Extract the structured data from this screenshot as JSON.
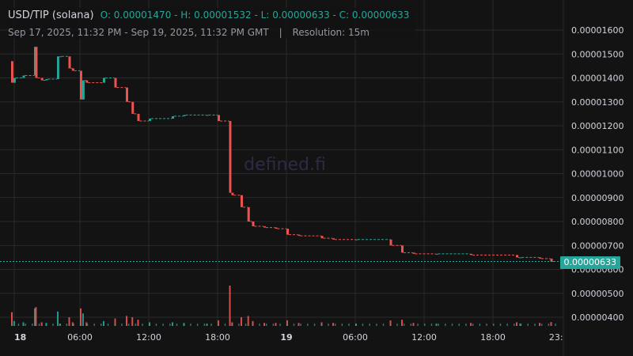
{
  "header": {
    "pair": "USD/TIP (solana)",
    "ohlc": "O: 0.00001470 - H: 0.00001532 - L: 0.00000633 - C: 0.00000633",
    "range": "Sep 17, 2025, 11:32 PM - Sep 19, 2025, 11:32 PM GMT",
    "separator": "|",
    "resolution": "Resolution: 15m"
  },
  "watermark": "defined.fi",
  "last_price_label": "0.00000633",
  "colors": {
    "up": "#26a69a",
    "down": "#ef5350",
    "background": "#131313",
    "grid": "#2a2a2a",
    "text": "#d1d4dc"
  },
  "chart_data": {
    "type": "candlestick",
    "y_ticks": [
      "0.00000400",
      "0.00000500",
      "0.00000600",
      "0.00000700",
      "0.00000800",
      "0.00000900",
      "0.00001000",
      "0.00001100",
      "0.00001200",
      "0.00001300",
      "0.00001400",
      "0.00001500",
      "0.00001600"
    ],
    "y_range": [
      3.5e-06,
      1.64e-05
    ],
    "x_ticks": [
      "18",
      "06:00",
      "12:00",
      "18:00",
      "19",
      "06:00",
      "12:00",
      "18:00",
      "23:"
    ],
    "grid": true,
    "last_price": 6.33e-06,
    "price_series_hours_from_sep18_0000": [
      [
        0,
        1.47e-05
      ],
      [
        0.2,
        1.38e-05
      ],
      [
        1,
        1.4e-05
      ],
      [
        2,
        1.41e-05
      ],
      [
        2.1,
        1.53e-05
      ],
      [
        2.6,
        1.4e-05
      ],
      [
        3,
        1.39e-05
      ],
      [
        4,
        1.395e-05
      ],
      [
        4.2,
        1.49e-05
      ],
      [
        5,
        1.49e-05
      ],
      [
        5.3,
        1.44e-05
      ],
      [
        6,
        1.43e-05
      ],
      [
        6.2,
        1.31e-05
      ],
      [
        6.5,
        1.39e-05
      ],
      [
        8,
        1.38e-05
      ],
      [
        9,
        1.4e-05
      ],
      [
        10,
        1.36e-05
      ],
      [
        10.5,
        1.3e-05
      ],
      [
        11,
        1.25e-05
      ],
      [
        12,
        1.22e-05
      ],
      [
        14,
        1.23e-05
      ],
      [
        15,
        1.24e-05
      ],
      [
        17,
        1.245e-05
      ],
      [
        18,
        1.245e-05
      ],
      [
        19,
        1.22e-05
      ],
      [
        19.2,
        9.2e-06
      ],
      [
        20,
        9.1e-06
      ],
      [
        20.6,
        8.6e-06
      ],
      [
        21,
        8e-06
      ],
      [
        22,
        7.8e-06
      ],
      [
        23,
        7.75e-06
      ],
      [
        24,
        7.7e-06
      ],
      [
        25,
        7.45e-06
      ],
      [
        27,
        7.4e-06
      ],
      [
        28,
        7.3e-06
      ],
      [
        30,
        7.25e-06
      ],
      [
        33,
        7.25e-06
      ],
      [
        34,
        7e-06
      ],
      [
        35,
        6.7e-06
      ],
      [
        37,
        6.65e-06
      ],
      [
        40,
        6.65e-06
      ],
      [
        44,
        6.6e-06
      ],
      [
        44.3,
        6.5e-06
      ],
      [
        46,
        6.5e-06
      ],
      [
        47,
        6.45e-06
      ],
      [
        47.5,
        6.33e-06
      ]
    ]
  }
}
